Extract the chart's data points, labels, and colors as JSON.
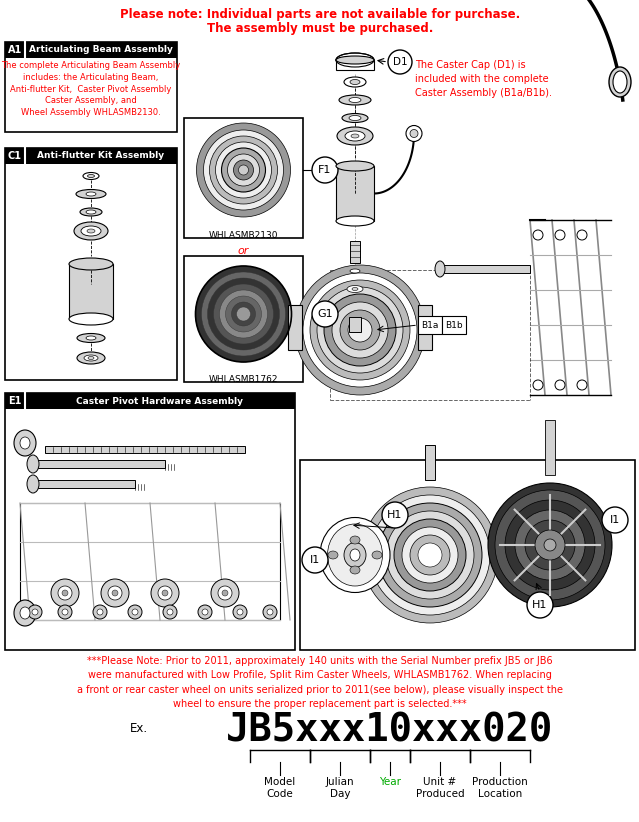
{
  "title_line1": "Please note: Individual parts are not available for purchase.",
  "title_line2": "The assembly must be purchased.",
  "title_color": "#ff0000",
  "bg_color": "#ffffff",
  "box_A1_label": "A1",
  "box_A1_title": "Articulating Beam Assembly",
  "box_A1_text": "The complete Articulating Beam Assembly\nincludes: the Articulating Beam,\nAnti-flutter Kit,  Caster Pivot Assembly\nCaster Assembly, and\nWheel Assembly WHLASMB2130.",
  "box_A1_text_color": "#ff0000",
  "box_C1_label": "C1",
  "box_C1_title": "Anti-flutter Kit Assembly",
  "wheel1_label": "WHLASMB2130",
  "wheel1_callout": "F1",
  "or_text": "or",
  "wheel2_label": "WHLASMB1762",
  "wheel2_callout": "G1",
  "caster_cap_text": "The Caster Cap (D1) is\nincluded with the complete\nCaster Assembly (B1a/B1b).",
  "caster_cap_color": "#ff0000",
  "callout_D1": "D1",
  "callout_B1a": "B1a",
  "callout_B1b": "B1b",
  "callout_H1": "H1",
  "callout_I1": "I1",
  "box_E1_label": "E1",
  "box_E1_title": "Caster Pivot Hardware Assembly",
  "note_line1": "***Please Note: Prior to 2011, approximately 140 units with the Serial Number prefix JB5 or JB6",
  "note_line2": "were manufactured with Low Profile, Split Rim Caster Wheels, WHLASMB1762. When replacing",
  "note_line3": "a front or rear caster wheel on units serialized prior to 2011(see below), please visually inspect the",
  "note_line4": "wheel to ensure the proper replacement part is selected.***",
  "note_color": "#ff0000",
  "serial_prefix": "Ex.",
  "serial_text": "JB5xxx10xxx020",
  "serial_segments": [
    "JB5",
    "xxx",
    "10",
    "xxx",
    "020"
  ],
  "serial_labels": [
    "Model\nCode",
    "Julian\nDay",
    "Year",
    "Unit #\nProduced",
    "Production\nLocation"
  ],
  "serial_label_colors": [
    "#000000",
    "#000000",
    "#00aa00",
    "#000000",
    "#000000"
  ],
  "figsize": [
    6.39,
    8.22
  ],
  "dpi": 100
}
